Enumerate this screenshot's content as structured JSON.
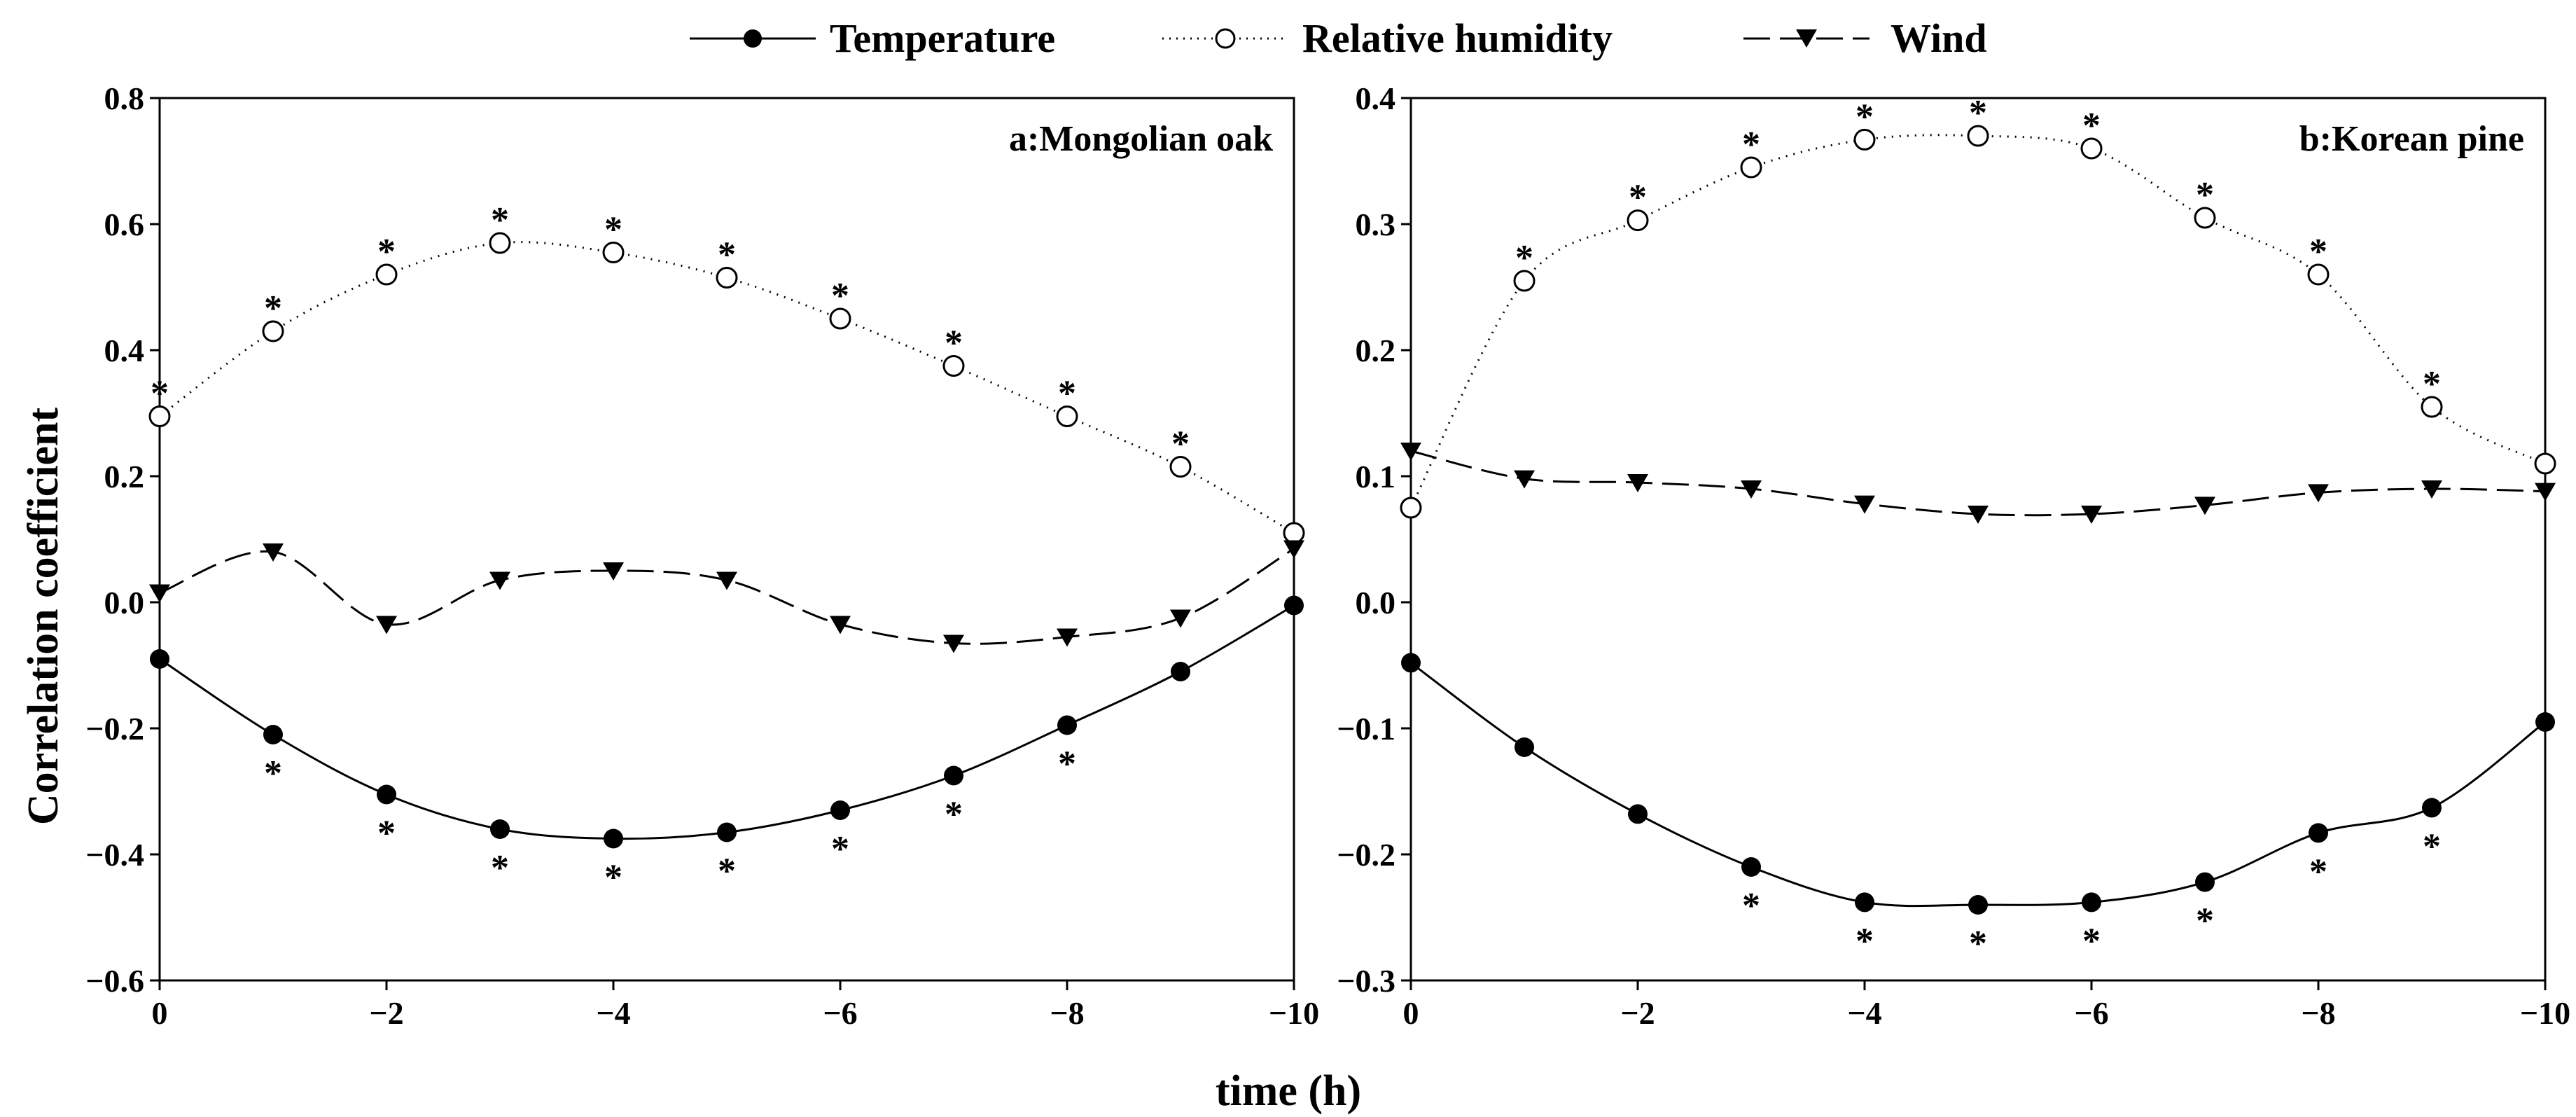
{
  "legend": [
    {
      "key": "temperature",
      "label": "Temperature"
    },
    {
      "key": "humidity",
      "label": "Relative humidity"
    },
    {
      "key": "wind",
      "label": "Wind"
    }
  ],
  "shared_axes": {
    "xlabel": "time (h)",
    "ylabel": "Correlation coefficient"
  },
  "chart_data": [
    {
      "type": "line",
      "title": "a:Mongolian oak",
      "xlabel": "time (h)",
      "ylabel": "Correlation coefficient",
      "x": [
        0,
        -1,
        -2,
        -3,
        -4,
        -5,
        -6,
        -7,
        -8,
        -9,
        -10
      ],
      "xlim": [
        0,
        -10
      ],
      "ylim": [
        -0.6,
        0.8
      ],
      "xticks": [
        0,
        -2,
        -4,
        -6,
        -8,
        -10
      ],
      "xtick_labels": [
        "0",
        "−2",
        "−4",
        "−6",
        "−8",
        "−10"
      ],
      "yticks": [
        -0.6,
        -0.4,
        -0.2,
        0.0,
        0.2,
        0.4,
        0.6,
        0.8
      ],
      "ytick_labels": [
        "−0.6",
        "−0.4",
        "−0.2",
        "0.0",
        "0.2",
        "0.4",
        "0.6",
        "0.8"
      ],
      "series": [
        {
          "key": "temperature",
          "name": "Temperature",
          "values": [
            -0.09,
            -0.21,
            -0.305,
            -0.36,
            -0.375,
            -0.365,
            -0.33,
            -0.275,
            -0.195,
            -0.11,
            -0.005
          ],
          "significant": [
            false,
            true,
            true,
            true,
            true,
            true,
            true,
            true,
            true,
            false,
            false
          ]
        },
        {
          "key": "humidity",
          "name": "Relative humidity",
          "values": [
            0.295,
            0.43,
            0.52,
            0.57,
            0.555,
            0.515,
            0.45,
            0.375,
            0.295,
            0.215,
            0.11
          ],
          "significant": [
            true,
            true,
            true,
            true,
            true,
            true,
            true,
            true,
            true,
            true,
            false
          ]
        },
        {
          "key": "wind",
          "name": "Wind",
          "values": [
            0.015,
            0.08,
            -0.035,
            0.035,
            0.05,
            0.035,
            -0.035,
            -0.065,
            -0.055,
            -0.025,
            0.085
          ],
          "significant": [
            false,
            false,
            false,
            false,
            false,
            false,
            false,
            false,
            false,
            false,
            false
          ]
        }
      ],
      "significance_marker": "*"
    },
    {
      "type": "line",
      "title": "b:Korean pine",
      "xlabel": "time (h)",
      "ylabel": "Correlation coefficient",
      "x": [
        0,
        -1,
        -2,
        -3,
        -4,
        -5,
        -6,
        -7,
        -8,
        -9,
        -10
      ],
      "xlim": [
        0,
        -10
      ],
      "ylim": [
        -0.3,
        0.4
      ],
      "xticks": [
        0,
        -2,
        -4,
        -6,
        -8,
        -10
      ],
      "xtick_labels": [
        "0",
        "−2",
        "−4",
        "−6",
        "−8",
        "−10"
      ],
      "yticks": [
        -0.3,
        -0.2,
        -0.1,
        0.0,
        0.1,
        0.2,
        0.3,
        0.4
      ],
      "ytick_labels": [
        "−0.3",
        "−0.2",
        "−0.1",
        "0.0",
        "0.1",
        "0.2",
        "0.3",
        "0.4"
      ],
      "series": [
        {
          "key": "temperature",
          "name": "Temperature",
          "values": [
            -0.048,
            -0.115,
            -0.168,
            -0.21,
            -0.238,
            -0.24,
            -0.238,
            -0.222,
            -0.183,
            -0.163,
            -0.095
          ],
          "significant": [
            false,
            false,
            false,
            true,
            true,
            true,
            true,
            true,
            true,
            true,
            false
          ]
        },
        {
          "key": "humidity",
          "name": "Relative humidity",
          "values": [
            0.075,
            0.255,
            0.303,
            0.345,
            0.367,
            0.37,
            0.36,
            0.305,
            0.26,
            0.155,
            0.11
          ],
          "significant": [
            false,
            true,
            true,
            true,
            true,
            true,
            true,
            true,
            true,
            true,
            false
          ]
        },
        {
          "key": "wind",
          "name": "Wind",
          "values": [
            0.12,
            0.098,
            0.095,
            0.09,
            0.078,
            0.07,
            0.07,
            0.077,
            0.087,
            0.09,
            0.088
          ],
          "significant": [
            false,
            false,
            false,
            false,
            false,
            false,
            false,
            false,
            false,
            false,
            false
          ]
        }
      ],
      "significance_marker": "*"
    }
  ]
}
